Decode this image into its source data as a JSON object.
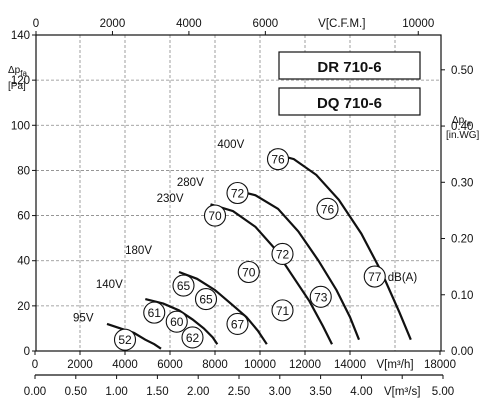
{
  "chart_data": {
    "type": "line",
    "models": [
      "DR 710-6",
      "DQ 710-6"
    ],
    "x_label": "V[m³/h]",
    "x_ticks": [
      0,
      2000,
      4000,
      6000,
      8000,
      10000,
      12000,
      14000,
      18000
    ],
    "x_range": [
      0,
      18000
    ],
    "y_label": "Δpfa [Pa]",
    "y_label_parts": [
      "Δp",
      "fa",
      "[Pa]"
    ],
    "y_ticks": [
      0,
      20,
      40,
      60,
      80,
      100,
      120,
      140
    ],
    "y_range": [
      0,
      140
    ],
    "top_axis": {
      "label": "V[C.F.M.]",
      "ticks": [
        0,
        2000,
        4000,
        6000,
        10000
      ],
      "range": [
        0,
        10595
      ]
    },
    "bottom2_axis": {
      "label": "V[m³/s]",
      "ticks": [
        "0.00",
        "0.50",
        "1.00",
        "1.50",
        "2.00",
        "2.50",
        "3.00",
        "3.50",
        "4.00",
        "4.50",
        "5.00"
      ],
      "range": [
        0,
        5
      ]
    },
    "right_axis": {
      "label": "Δpfa [in.WG]",
      "label_parts": [
        "Δp",
        "fa",
        "[in.WG]"
      ],
      "ticks": [
        "0.00",
        "0.10",
        "0.20",
        "0.30",
        "0.40",
        "0.50"
      ],
      "range": [
        0,
        0.5619
      ]
    },
    "grid": true,
    "series": [
      {
        "name": "400V",
        "points": [
          [
            10400,
            88
          ],
          [
            11500,
            85
          ],
          [
            12500,
            78
          ],
          [
            13500,
            67
          ],
          [
            14500,
            52
          ],
          [
            15400,
            35
          ],
          [
            16200,
            17
          ],
          [
            16700,
            5
          ]
        ]
      },
      {
        "name": "280V",
        "points": [
          [
            8600,
            72
          ],
          [
            9800,
            69
          ],
          [
            10800,
            63
          ],
          [
            11700,
            53
          ],
          [
            12600,
            40
          ],
          [
            13400,
            27
          ],
          [
            14000,
            15
          ],
          [
            14400,
            5
          ]
        ]
      },
      {
        "name": "230V",
        "points": [
          [
            7800,
            65
          ],
          [
            8800,
            62
          ],
          [
            9800,
            55
          ],
          [
            10600,
            46
          ],
          [
            11400,
            34
          ],
          [
            12200,
            22
          ],
          [
            12800,
            11
          ],
          [
            13200,
            3
          ]
        ]
      },
      {
        "name": "180V",
        "points": [
          [
            6400,
            35
          ],
          [
            7200,
            32
          ],
          [
            8000,
            27
          ],
          [
            8700,
            21
          ],
          [
            9400,
            15
          ],
          [
            9900,
            9
          ],
          [
            10300,
            3
          ]
        ]
      },
      {
        "name": "140V",
        "points": [
          [
            4900,
            23
          ],
          [
            5700,
            21
          ],
          [
            6400,
            18
          ],
          [
            7000,
            14
          ],
          [
            7500,
            10
          ],
          [
            7900,
            6
          ],
          [
            8100,
            3
          ]
        ]
      },
      {
        "name": "95V",
        "points": [
          [
            3200,
            12
          ],
          [
            3800,
            10
          ],
          [
            4400,
            8
          ],
          [
            4900,
            5
          ],
          [
            5300,
            3
          ],
          [
            5600,
            1
          ]
        ]
      }
    ],
    "voltage_labels": [
      {
        "text": "400V",
        "x": 9300,
        "y": 90
      },
      {
        "text": "280V",
        "x": 7500,
        "y": 73
      },
      {
        "text": "230V",
        "x": 6600,
        "y": 66
      },
      {
        "text": "180V",
        "x": 5200,
        "y": 43
      },
      {
        "text": "140V",
        "x": 3900,
        "y": 28
      },
      {
        "text": "95V",
        "x": 2600,
        "y": 13
      }
    ],
    "noise_labels": [
      {
        "value": "76",
        "x": 10800,
        "y": 85
      },
      {
        "value": "76",
        "x": 13000,
        "y": 63
      },
      {
        "value": "77",
        "x": 15100,
        "y": 33
      },
      {
        "value": "72",
        "x": 9000,
        "y": 70
      },
      {
        "value": "72",
        "x": 11000,
        "y": 43
      },
      {
        "value": "73",
        "x": 12700,
        "y": 24
      },
      {
        "value": "70",
        "x": 8000,
        "y": 60
      },
      {
        "value": "70",
        "x": 9500,
        "y": 35
      },
      {
        "value": "71",
        "x": 11000,
        "y": 18
      },
      {
        "value": "65",
        "x": 6600,
        "y": 29
      },
      {
        "value": "65",
        "x": 7600,
        "y": 23
      },
      {
        "value": "67",
        "x": 9000,
        "y": 12
      },
      {
        "value": "61",
        "x": 5300,
        "y": 17
      },
      {
        "value": "60",
        "x": 6300,
        "y": 13
      },
      {
        "value": "62",
        "x": 7000,
        "y": 6
      },
      {
        "value": "52",
        "x": 4000,
        "y": 5
      }
    ],
    "noise_unit": "dB(A)"
  }
}
